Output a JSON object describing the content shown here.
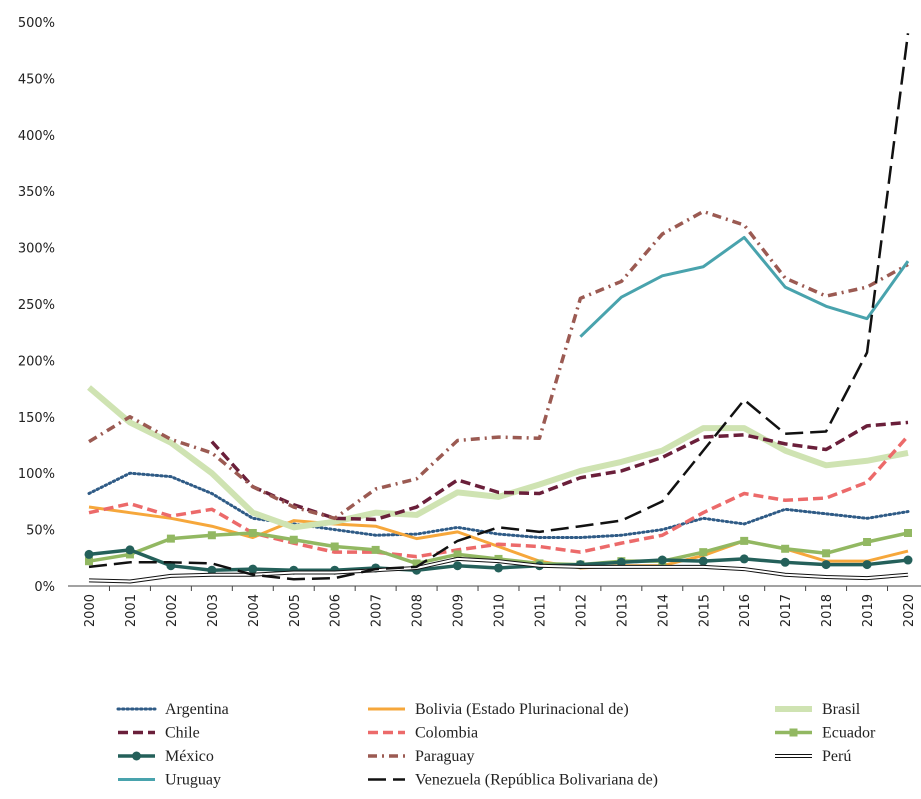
{
  "chart_data": {
    "type": "line",
    "categories": [
      "2000",
      "2001",
      "2002",
      "2003",
      "2004",
      "2005",
      "2006",
      "2007",
      "2008",
      "2009",
      "2010",
      "2011",
      "2012",
      "2013",
      "2014",
      "2015",
      "2016",
      "2017",
      "2018",
      "2019",
      "2020"
    ],
    "ylim": [
      0,
      500
    ],
    "yticks": [
      {
        "value": 0,
        "label": "0%"
      },
      {
        "value": 50,
        "label": "50%"
      },
      {
        "value": 100,
        "label": "100%"
      },
      {
        "value": 150,
        "label": "150%"
      },
      {
        "value": 200,
        "label": "200%"
      },
      {
        "value": 250,
        "label": "250%"
      },
      {
        "value": 300,
        "label": "300%"
      },
      {
        "value": 350,
        "label": "350%"
      },
      {
        "value": 400,
        "label": "400%"
      },
      {
        "value": 450,
        "label": "450%"
      },
      {
        "value": 500,
        "label": "500%"
      }
    ],
    "grid": false,
    "legend": "bottom",
    "series": [
      {
        "name": "Argentina",
        "color": "#2f5b86",
        "line_style": "dotted",
        "width": 3,
        "values": [
          82,
          100,
          97,
          82,
          60,
          55,
          50,
          45,
          46,
          52,
          46,
          43,
          43,
          45,
          50,
          60,
          55,
          68,
          64,
          60,
          66
        ]
      },
      {
        "name": "Bolivia (Estado Plurinacional de)",
        "color": "#f6a73b",
        "line_style": "solid",
        "width": 3,
        "values": [
          70,
          65,
          60,
          53,
          43,
          58,
          55,
          53,
          42,
          48,
          35,
          22,
          16,
          18,
          18,
          27,
          40,
          33,
          22,
          22,
          31
        ]
      },
      {
        "name": "Brasil",
        "color": "#cfe3b2",
        "line_style": "solid",
        "width": 6,
        "values": [
          176,
          145,
          127,
          100,
          65,
          52,
          57,
          65,
          63,
          83,
          79,
          90,
          102,
          110,
          120,
          140,
          140,
          120,
          107,
          111,
          118
        ]
      },
      {
        "name": "Chile",
        "color": "#6a1f3a",
        "line_style": "dashed",
        "width": 3.5,
        "values": [
          null,
          null,
          null,
          128,
          88,
          72,
          60,
          59,
          70,
          94,
          83,
          82,
          96,
          102,
          114,
          132,
          134,
          126,
          121,
          142,
          145
        ]
      },
      {
        "name": "Colombia",
        "color": "#ec6a6a",
        "line_style": "dashed",
        "width": 3.5,
        "values": [
          65,
          73,
          62,
          68,
          47,
          38,
          30,
          30,
          26,
          32,
          37,
          35,
          30,
          38,
          45,
          65,
          82,
          76,
          78,
          92,
          133
        ]
      },
      {
        "name": "Ecuador",
        "color": "#92b862",
        "line_style": "solid",
        "width": 3.5,
        "marker": "square",
        "values": [
          22,
          28,
          42,
          45,
          47,
          41,
          35,
          32,
          20,
          28,
          24,
          20,
          19,
          22,
          22,
          30,
          40,
          33,
          29,
          39,
          47
        ]
      },
      {
        "name": "México",
        "color": "#24605a",
        "line_style": "solid",
        "width": 3.5,
        "marker": "circle",
        "values": [
          28,
          32,
          18,
          14,
          15,
          14,
          14,
          16,
          14,
          18,
          16,
          18,
          19,
          21,
          23,
          22,
          24,
          21,
          19,
          19,
          23
        ]
      },
      {
        "name": "Paraguay",
        "color": "#9b5a52",
        "line_style": "dashdot",
        "width": 3.5,
        "values": [
          128,
          150,
          130,
          118,
          88,
          70,
          60,
          86,
          95,
          129,
          132,
          131,
          255,
          270,
          312,
          332,
          320,
          273,
          257,
          265,
          285
        ]
      },
      {
        "name": "Perú",
        "color": "#111111",
        "line_style": "double",
        "width": 4,
        "values": [
          5,
          4,
          9,
          10,
          10,
          12,
          12,
          14,
          16,
          24,
          22,
          18,
          17,
          17,
          17,
          17,
          15,
          10,
          8,
          7,
          10
        ]
      },
      {
        "name": "Uruguay",
        "color": "#49a3ad",
        "line_style": "solid",
        "width": 3,
        "values": [
          null,
          null,
          null,
          null,
          null,
          null,
          null,
          null,
          null,
          null,
          null,
          null,
          221,
          256,
          275,
          283,
          309,
          265,
          248,
          237,
          288
        ]
      },
      {
        "name": "Venezuela (República Bolivariana de)",
        "color": "#111111",
        "line_style": "longdash",
        "width": 2.5,
        "values": [
          17,
          21,
          21,
          20,
          10,
          6,
          7,
          15,
          17,
          40,
          52,
          48,
          53,
          58,
          75,
          120,
          165,
          135,
          137,
          207,
          490
        ]
      }
    ]
  }
}
